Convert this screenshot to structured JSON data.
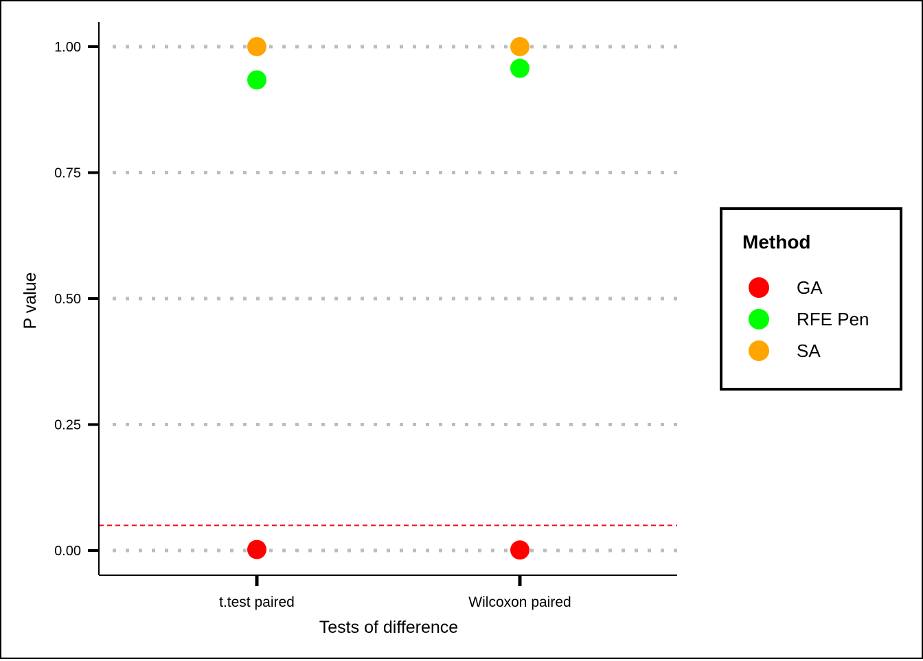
{
  "chart_data": {
    "type": "scatter",
    "title": "",
    "xlabel": "Tests of difference",
    "ylabel": "P value",
    "categories": [
      "t.test paired",
      "Wilcoxon paired"
    ],
    "ylim": [
      -0.049,
      1.049
    ],
    "yticks": [
      0.0,
      0.25,
      0.5,
      0.75,
      1.0
    ],
    "ytick_labels": [
      "0.00",
      "0.25",
      "0.50",
      "0.75",
      "1.00"
    ],
    "grid": "horizontal dotted",
    "reference_line": {
      "y": 0.05,
      "color": "#e8101a",
      "style": "dashed"
    },
    "legend": {
      "title": "Method",
      "position": "right"
    },
    "series": [
      {
        "name": "GA",
        "color": "#ff0000",
        "values": [
          0.002,
          0.001
        ]
      },
      {
        "name": "RFE Pen",
        "color": "#00ff00",
        "values": [
          0.934,
          0.957
        ]
      },
      {
        "name": "SA",
        "color": "#ffa500",
        "values": [
          1.0,
          1.0
        ]
      }
    ]
  }
}
